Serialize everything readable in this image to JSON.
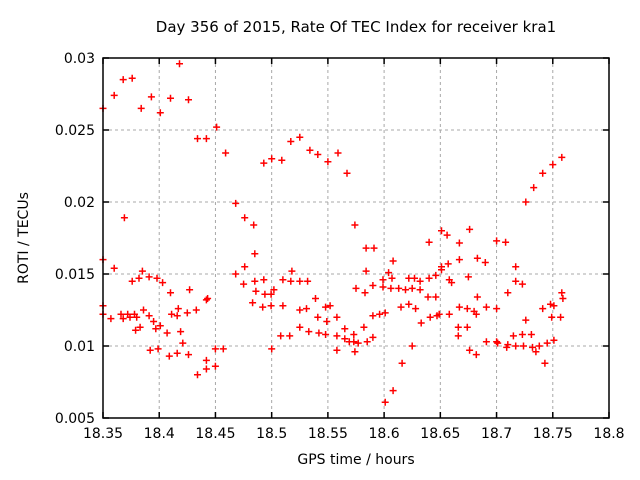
{
  "chart_data": {
    "type": "scatter",
    "title": "Day 356 of 2015, Rate Of TEC Index for receiver kra1",
    "xlabel": "GPS time / hours",
    "ylabel": "ROTI / TECUs",
    "xlim": [
      18.35,
      18.8
    ],
    "ylim": [
      0.005,
      0.03
    ],
    "xticks": [
      18.35,
      18.4,
      18.45,
      18.5,
      18.55,
      18.6,
      18.65,
      18.7,
      18.75,
      18.8
    ],
    "xtick_labels": [
      "18.35",
      "18.4",
      "18.45",
      "18.5",
      "18.55",
      "18.6",
      "18.65",
      "18.7",
      "18.75",
      "18.8"
    ],
    "yticks": [
      0.005,
      0.01,
      0.015,
      0.02,
      0.025,
      0.03
    ],
    "ytick_labels": [
      "0.005",
      "0.01",
      "0.015",
      "0.02",
      "0.025",
      "0.03"
    ],
    "grid": true,
    "legend": "none",
    "marker": "plus",
    "marker_color": "#ff0000",
    "grid_color": "#a8a8a8",
    "axis_color": "#000000",
    "points": [
      [
        18.35,
        0.0265
      ],
      [
        18.36,
        0.0274
      ],
      [
        18.368,
        0.0285
      ],
      [
        18.376,
        0.0286
      ],
      [
        18.384,
        0.0265
      ],
      [
        18.393,
        0.0273
      ],
      [
        18.401,
        0.0262
      ],
      [
        18.41,
        0.0272
      ],
      [
        18.418,
        0.0296
      ],
      [
        18.426,
        0.0271
      ],
      [
        18.434,
        0.0244
      ],
      [
        18.442,
        0.0244
      ],
      [
        18.451,
        0.0252
      ],
      [
        18.459,
        0.0234
      ],
      [
        18.468,
        0.0199
      ],
      [
        18.476,
        0.0189
      ],
      [
        18.484,
        0.0184
      ],
      [
        18.369,
        0.0189
      ],
      [
        18.493,
        0.0227
      ],
      [
        18.5,
        0.023
      ],
      [
        18.509,
        0.0229
      ],
      [
        18.517,
        0.0242
      ],
      [
        18.525,
        0.0245
      ],
      [
        18.534,
        0.0236
      ],
      [
        18.541,
        0.0233
      ],
      [
        18.55,
        0.0228
      ],
      [
        18.559,
        0.0234
      ],
      [
        18.567,
        0.022
      ],
      [
        18.574,
        0.0184
      ],
      [
        18.584,
        0.0168
      ],
      [
        18.591,
        0.0168
      ],
      [
        18.608,
        0.0159
      ],
      [
        18.64,
        0.0172
      ],
      [
        18.651,
        0.018
      ],
      [
        18.656,
        0.0177
      ],
      [
        18.667,
        0.01715
      ],
      [
        18.676,
        0.0181
      ],
      [
        18.7,
        0.0173
      ],
      [
        18.708,
        0.0172
      ],
      [
        18.726,
        0.02
      ],
      [
        18.733,
        0.021
      ],
      [
        18.741,
        0.022
      ],
      [
        18.75,
        0.0226
      ],
      [
        18.758,
        0.0231
      ],
      [
        18.35,
        0.016
      ],
      [
        18.35,
        0.0128
      ],
      [
        18.35,
        0.0122
      ],
      [
        18.36,
        0.0154
      ],
      [
        18.385,
        0.0152
      ],
      [
        18.382,
        0.0147
      ],
      [
        18.391,
        0.0148
      ],
      [
        18.398,
        0.0147
      ],
      [
        18.376,
        0.0145
      ],
      [
        18.403,
        0.0144
      ],
      [
        18.427,
        0.0139
      ],
      [
        18.41,
        0.0137
      ],
      [
        18.443,
        0.0133
      ],
      [
        18.442,
        0.0132
      ],
      [
        18.357,
        0.0119
      ],
      [
        18.366,
        0.0122
      ],
      [
        18.368,
        0.0119
      ],
      [
        18.372,
        0.0122
      ],
      [
        18.374,
        0.012
      ],
      [
        18.378,
        0.0122
      ],
      [
        18.38,
        0.012
      ],
      [
        18.386,
        0.0125
      ],
      [
        18.391,
        0.0121
      ],
      [
        18.395,
        0.0117
      ],
      [
        18.379,
        0.0111
      ],
      [
        18.383,
        0.0113
      ],
      [
        18.397,
        0.0112
      ],
      [
        18.401,
        0.0114
      ],
      [
        18.407,
        0.0109
      ],
      [
        18.411,
        0.0122
      ],
      [
        18.416,
        0.0121
      ],
      [
        18.419,
        0.011
      ],
      [
        18.425,
        0.0123
      ],
      [
        18.433,
        0.0125
      ],
      [
        18.417,
        0.0126
      ],
      [
        18.392,
        0.0097
      ],
      [
        18.399,
        0.0098
      ],
      [
        18.409,
        0.0093
      ],
      [
        18.416,
        0.0095
      ],
      [
        18.421,
        0.0102
      ],
      [
        18.426,
        0.0094
      ],
      [
        18.434,
        0.008
      ],
      [
        18.442,
        0.009
      ],
      [
        18.442,
        0.0084
      ],
      [
        18.45,
        0.0086
      ],
      [
        18.45,
        0.0098
      ],
      [
        18.457,
        0.0098
      ],
      [
        18.5,
        0.0098
      ],
      [
        18.485,
        0.0164
      ],
      [
        18.476,
        0.0155
      ],
      [
        18.468,
        0.015
      ],
      [
        18.475,
        0.0143
      ],
      [
        18.485,
        0.0145
      ],
      [
        18.493,
        0.0146
      ],
      [
        18.486,
        0.0138
      ],
      [
        18.494,
        0.0136
      ],
      [
        18.4995,
        0.0136
      ],
      [
        18.483,
        0.013
      ],
      [
        18.492,
        0.0127
      ],
      [
        18.4995,
        0.0128
      ],
      [
        18.502,
        0.0139
      ],
      [
        18.518,
        0.0152
      ],
      [
        18.584,
        0.0152
      ],
      [
        18.604,
        0.0151
      ],
      [
        18.51,
        0.0146
      ],
      [
        18.517,
        0.0145
      ],
      [
        18.525,
        0.0145
      ],
      [
        18.532,
        0.0145
      ],
      [
        18.599,
        0.0146
      ],
      [
        18.607,
        0.0147
      ],
      [
        18.622,
        0.0147
      ],
      [
        18.627,
        0.0147
      ],
      [
        18.632,
        0.0145
      ],
      [
        18.64,
        0.0147
      ],
      [
        18.646,
        0.0149
      ],
      [
        18.575,
        0.014
      ],
      [
        18.59,
        0.0142
      ],
      [
        18.583,
        0.0137
      ],
      [
        18.599,
        0.0141
      ],
      [
        18.606,
        0.014
      ],
      [
        18.613,
        0.014
      ],
      [
        18.619,
        0.0139
      ],
      [
        18.625,
        0.014
      ],
      [
        18.632,
        0.0139
      ],
      [
        18.639,
        0.0134
      ],
      [
        18.646,
        0.0134
      ],
      [
        18.651,
        0.0155
      ],
      [
        18.651,
        0.0153
      ],
      [
        18.51,
        0.0128
      ],
      [
        18.525,
        0.0125
      ],
      [
        18.531,
        0.0126
      ],
      [
        18.539,
        0.0133
      ],
      [
        18.548,
        0.0127
      ],
      [
        18.552,
        0.0128
      ],
      [
        18.615,
        0.0127
      ],
      [
        18.622,
        0.0129
      ],
      [
        18.628,
        0.0126
      ],
      [
        18.633,
        0.0116
      ],
      [
        18.541,
        0.012
      ],
      [
        18.549,
        0.0117
      ],
      [
        18.558,
        0.012
      ],
      [
        18.59,
        0.0121
      ],
      [
        18.596,
        0.0122
      ],
      [
        18.601,
        0.0123
      ],
      [
        18.641,
        0.012
      ],
      [
        18.647,
        0.0121
      ],
      [
        18.508,
        0.0107
      ],
      [
        18.516,
        0.0107
      ],
      [
        18.525,
        0.0113
      ],
      [
        18.533,
        0.011
      ],
      [
        18.542,
        0.0109
      ],
      [
        18.548,
        0.0108
      ],
      [
        18.558,
        0.0107
      ],
      [
        18.565,
        0.0112
      ],
      [
        18.573,
        0.0108
      ],
      [
        18.582,
        0.0113
      ],
      [
        18.565,
        0.0105
      ],
      [
        18.569,
        0.0103
      ],
      [
        18.573,
        0.0103
      ],
      [
        18.577,
        0.0102
      ],
      [
        18.585,
        0.0103
      ],
      [
        18.59,
        0.0106
      ],
      [
        18.558,
        0.0097
      ],
      [
        18.574,
        0.0096
      ],
      [
        18.625,
        0.01
      ],
      [
        18.616,
        0.0088
      ],
      [
        18.608,
        0.0069
      ],
      [
        18.601,
        0.0061
      ],
      [
        18.683,
        0.0161
      ],
      [
        18.69,
        0.0158
      ],
      [
        18.667,
        0.016
      ],
      [
        18.657,
        0.0157
      ],
      [
        18.658,
        0.0146
      ],
      [
        18.66,
        0.0144
      ],
      [
        18.675,
        0.0148
      ],
      [
        18.717,
        0.0155
      ],
      [
        18.717,
        0.0145
      ],
      [
        18.723,
        0.0143
      ],
      [
        18.71,
        0.0137
      ],
      [
        18.683,
        0.0134
      ],
      [
        18.758,
        0.0137
      ],
      [
        18.759,
        0.0133
      ],
      [
        18.667,
        0.0127
      ],
      [
        18.674,
        0.0126
      ],
      [
        18.68,
        0.0124
      ],
      [
        18.691,
        0.0127
      ],
      [
        18.7,
        0.0126
      ],
      [
        18.682,
        0.0122
      ],
      [
        18.649,
        0.0122
      ],
      [
        18.658,
        0.0122
      ],
      [
        18.741,
        0.0126
      ],
      [
        18.748,
        0.0129
      ],
      [
        18.751,
        0.0128
      ],
      [
        18.726,
        0.0118
      ],
      [
        18.749,
        0.012
      ],
      [
        18.757,
        0.012
      ],
      [
        18.666,
        0.0113
      ],
      [
        18.674,
        0.0113
      ],
      [
        18.666,
        0.0107
      ],
      [
        18.691,
        0.0103
      ],
      [
        18.7,
        0.0103
      ],
      [
        18.701,
        0.0102
      ],
      [
        18.71,
        0.0101
      ],
      [
        18.715,
        0.0107
      ],
      [
        18.723,
        0.0108
      ],
      [
        18.731,
        0.0108
      ],
      [
        18.709,
        0.0099
      ],
      [
        18.717,
        0.01
      ],
      [
        18.724,
        0.01
      ],
      [
        18.732,
        0.0099
      ],
      [
        18.738,
        0.01
      ],
      [
        18.745,
        0.0102
      ],
      [
        18.751,
        0.0104
      ],
      [
        18.676,
        0.0097
      ],
      [
        18.682,
        0.0094
      ],
      [
        18.735,
        0.0096
      ],
      [
        18.743,
        0.0088
      ]
    ]
  }
}
